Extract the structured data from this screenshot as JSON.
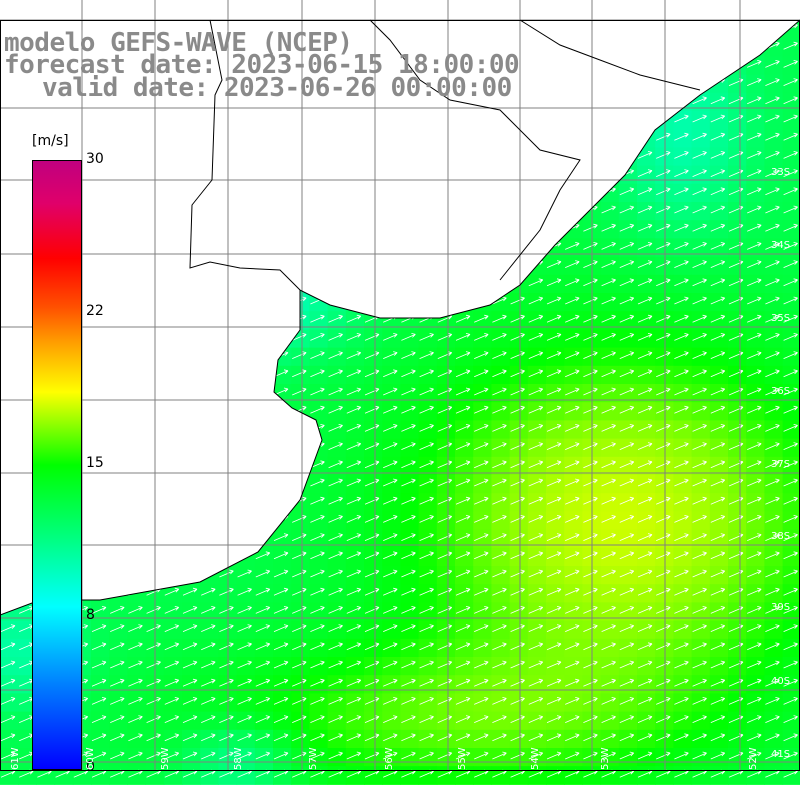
{
  "title": {
    "model": "modelo GEFS-WAVE (NCEP)",
    "forecast": "forecast date: 2023-06-15 18:00:00",
    "valid": "valid date: 2023-06-26 00:00:00"
  },
  "colorbar": {
    "unit": "[m/s]",
    "ticks": [
      "30",
      "22",
      "15",
      "8",
      "0"
    ],
    "min": 0,
    "max": 30
  },
  "lat_labels": [
    "33S",
    "34S",
    "35S",
    "36S",
    "37S",
    "38S",
    "39S",
    "40S",
    "41S"
  ],
  "lon_labels": [
    "61W",
    "60W",
    "59W",
    "58W",
    "57W",
    "56W",
    "55W",
    "54W",
    "53W",
    "52W"
  ],
  "colors": {
    "coast": "#000000",
    "grid": "#808080",
    "vectors": "#ffffff",
    "land": "#ffffff"
  }
}
